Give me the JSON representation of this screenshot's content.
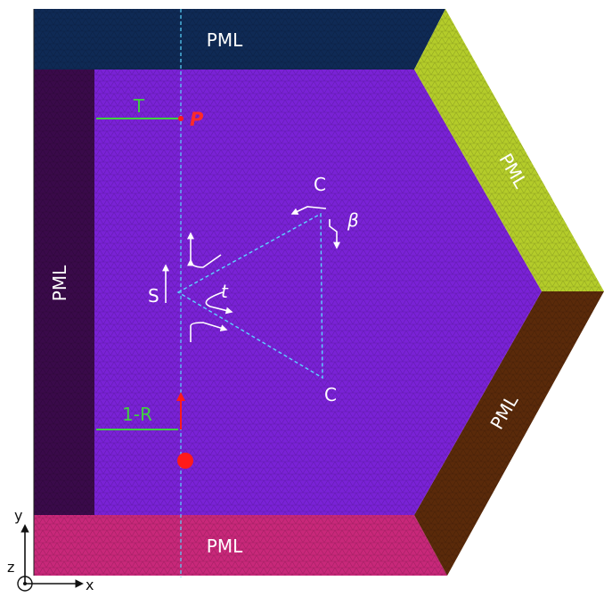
{
  "regions": {
    "pml_top": {
      "label": "PML",
      "color": "#0f2a55"
    },
    "pml_left": {
      "label": "PML",
      "color": "#3a0a4a"
    },
    "pml_bottom": {
      "label": "PML",
      "color": "#c8287a"
    },
    "pml_upper_right": {
      "label": "PML",
      "color": "#b4cc2a"
    },
    "pml_lower_right": {
      "label": "PML",
      "color": "#5a2a0a"
    },
    "domain": {
      "color": "#7a22d6"
    }
  },
  "labels": {
    "transmission": "T",
    "probe": "P",
    "reflection": "1-R",
    "source_side": "S",
    "corner_upper": "C",
    "corner_lower": "C",
    "angle_t": "t",
    "angle_beta": "β"
  },
  "axes": {
    "x": "x",
    "y": "y",
    "z": "z"
  },
  "colors": {
    "guide_line": "#5ad6ff",
    "measure_line": "#3fd23f",
    "source": "#ff1a1a",
    "arrow": "#ffffff"
  }
}
